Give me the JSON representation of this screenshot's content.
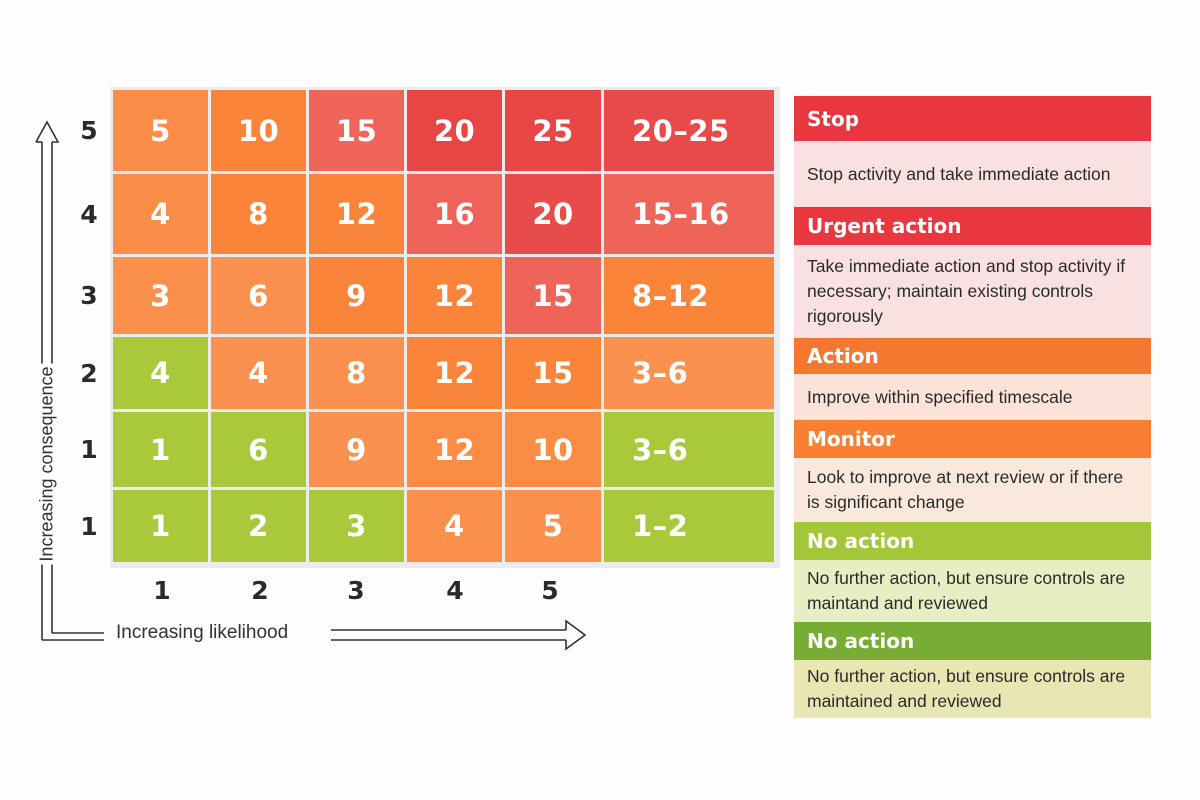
{
  "chart_data": {
    "type": "heatmap",
    "title": "",
    "xlabel": "Increasing likelihood",
    "ylabel": "Increasing consequence",
    "x_ticks": [
      "1",
      "2",
      "3",
      "4",
      "5"
    ],
    "y_ticks_top_to_bottom": [
      "5",
      "4",
      "3",
      "2",
      "1",
      "1"
    ],
    "extra_column_header": "",
    "rows": [
      {
        "label": "5",
        "cells": [
          "5",
          "10",
          "15",
          "20",
          "25"
        ],
        "range": "20–25"
      },
      {
        "label": "4",
        "cells": [
          "4",
          "8",
          "12",
          "16",
          "20"
        ],
        "range": "15–16"
      },
      {
        "label": "3",
        "cells": [
          "3",
          "6",
          "9",
          "12",
          "15"
        ],
        "range": "8–12"
      },
      {
        "label": "2",
        "cells": [
          "4",
          "4",
          "8",
          "12",
          "15"
        ],
        "range": "3–6"
      },
      {
        "label": "1",
        "cells": [
          "1",
          "6",
          "9",
          "12",
          "10"
        ],
        "range": "3–6"
      },
      {
        "label": "1",
        "cells": [
          "1",
          "2",
          "3",
          "4",
          "5"
        ],
        "range": "1–2"
      }
    ],
    "cell_colors": [
      [
        "#fb8d48",
        "#f9843a",
        "#ef6559",
        "#e84545",
        "#e84545",
        "#e94a49"
      ],
      [
        "#fb8d48",
        "#f9843a",
        "#f9843a",
        "#ee625a",
        "#e84c4a",
        "#ee6459"
      ],
      [
        "#fb8f4c",
        "#fb914f",
        "#f9843a",
        "#f9843a",
        "#ef6459",
        "#f9843a"
      ],
      [
        "#a9c93a",
        "#fb914f",
        "#fb914f",
        "#f9843a",
        "#f9843a",
        "#fb914f"
      ],
      [
        "#a9c93a",
        "#a9c93a",
        "#fb914f",
        "#fb8c45",
        "#fb8c45",
        "#a9c93a"
      ],
      [
        "#a9c93a",
        "#a9c93a",
        "#a9c93a",
        "#fb8f4c",
        "#fb8f4c",
        "#a9c93a"
      ]
    ],
    "legend": [
      {
        "label": "Stop",
        "color": "#e8373f",
        "description": "Stop activity and take immediate action"
      },
      {
        "label": "Urgent action",
        "color": "#e8373f",
        "description": "Take immediate action and stop activity if necessary; maintain existing controls rigorously"
      },
      {
        "label": "Action",
        "color": "#f6772f",
        "description": "Improve within specified timescale"
      },
      {
        "label": "Monitor",
        "color": "#f97f33",
        "description": "Look to improve at next review or if there is significant change"
      },
      {
        "label": "No action",
        "color": "#a4c73a",
        "description": "No further action, but ensure controls are maintand and reviewed"
      },
      {
        "label": "No action",
        "color": "#77ad35",
        "description": "No further action, but ensure controls are maintained and reviewed"
      }
    ]
  },
  "axes": {
    "y_title": "Increasing consequence",
    "x_title": "Increasing likelihood",
    "row_labels": [
      "5",
      "4",
      "3",
      "2",
      "1",
      "1"
    ],
    "col_labels": [
      "1",
      "2",
      "3",
      "4",
      "5"
    ]
  },
  "legend": [
    {
      "title": "Stop",
      "description": "Stop activity and take immediate action",
      "head_bg": "#e8373f",
      "desc_bg": "#f9e1e1"
    },
    {
      "title": "Urgent action",
      "description": "Take immediate action and stop activity if necessary; maintain existing controls rigorously",
      "head_bg": "#e8373f",
      "desc_bg": "#f9e1e1"
    },
    {
      "title": "Action",
      "description": "Improve within specified timescale",
      "head_bg": "#f6772f",
      "desc_bg": "#fbe3da"
    },
    {
      "title": "Monitor",
      "description": "Look to improve at next review or if there is significant change",
      "head_bg": "#f97f33",
      "desc_bg": "#fae8dc"
    },
    {
      "title": "No action",
      "description": "No further action, but ensure controls are maintand and reviewed",
      "head_bg": "#a4c73a",
      "desc_bg": "#e6efc4"
    },
    {
      "title": "No action",
      "description": "No further action, but ensure controls are maintained and reviewed",
      "head_bg": "#77ad35",
      "desc_bg": "#e8e7b4"
    }
  ]
}
